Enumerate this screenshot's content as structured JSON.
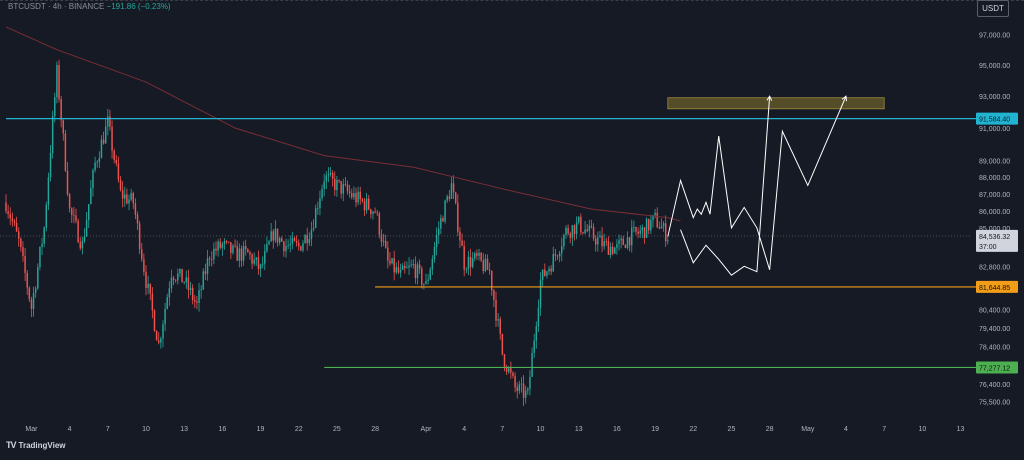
{
  "header": {
    "symbol": "BTCUSDT · 4h · BINANCE",
    "change": "−191.86 (−0.23%)"
  },
  "currency": "USDT",
  "brand": {
    "logo": "TV",
    "name": "TradingView"
  },
  "colors": {
    "background": "#161a25",
    "up": "#26a69a",
    "down": "#ef5350",
    "ma": "#7a2e35",
    "resistance_line": "#22b3d0",
    "support_line": "#f29d18",
    "low_line": "#4caf50",
    "zone": "#6b5d2a",
    "projection": "#ffffff"
  },
  "chart_data": {
    "type": "candlestick",
    "x_axis": {
      "tick_labels": [
        "Mar",
        "4",
        "7",
        "10",
        "13",
        "16",
        "19",
        "22",
        "25",
        "28",
        "Apr",
        "4",
        "7",
        "10",
        "13",
        "16",
        "19",
        "22",
        "25",
        "28",
        "May",
        "4",
        "7",
        "10",
        "13"
      ],
      "range": [
        "2025-02-27",
        "2025-05-15"
      ]
    },
    "y_axis": {
      "tick_labels": [
        "97,000.00",
        "95,000.00",
        "93,000.00",
        "91,000.00",
        "89,000.00",
        "88,000.00",
        "87,000.00",
        "86,000.00",
        "85,000.00",
        "82,800.00",
        "80,400.00",
        "79,400.00",
        "78,400.00",
        "76,400.00",
        "75,500.00"
      ],
      "range": [
        74300,
        98500
      ],
      "scale": "log"
    },
    "price_path": [
      [
        "2025-02-27",
        86500
      ],
      [
        "2025-02-28",
        84200
      ],
      [
        "2025-03-01",
        80500
      ],
      [
        "2025-03-02",
        85000
      ],
      [
        "2025-03-03",
        94500
      ],
      [
        "2025-03-04",
        86000
      ],
      [
        "2025-03-05",
        84000
      ],
      [
        "2025-03-06",
        88800
      ],
      [
        "2025-03-07",
        91300
      ],
      [
        "2025-03-08",
        87000
      ],
      [
        "2025-03-09",
        86500
      ],
      [
        "2025-03-10",
        82000
      ],
      [
        "2025-03-11",
        78500
      ],
      [
        "2025-03-12",
        82500
      ],
      [
        "2025-03-13",
        82000
      ],
      [
        "2025-03-14",
        80600
      ],
      [
        "2025-03-15",
        83500
      ],
      [
        "2025-03-16",
        84000
      ],
      [
        "2025-03-17",
        83500
      ],
      [
        "2025-03-18",
        83500
      ],
      [
        "2025-03-19",
        82600
      ],
      [
        "2025-03-20",
        84700
      ],
      [
        "2025-03-21",
        84000
      ],
      [
        "2025-03-22",
        83900
      ],
      [
        "2025-03-23",
        85000
      ],
      [
        "2025-03-24",
        88000
      ],
      [
        "2025-03-25",
        87500
      ],
      [
        "2025-03-26",
        87000
      ],
      [
        "2025-03-27",
        86500
      ],
      [
        "2025-03-28",
        86000
      ],
      [
        "2025-03-29",
        83000
      ],
      [
        "2025-03-30",
        82300
      ],
      [
        "2025-03-31",
        82800
      ],
      [
        "2025-04-01",
        81700
      ],
      [
        "2025-04-02",
        85000
      ],
      [
        "2025-04-03",
        87500
      ],
      [
        "2025-04-04",
        83000
      ],
      [
        "2025-04-05",
        83200
      ],
      [
        "2025-04-06",
        82500
      ],
      [
        "2025-04-07",
        78000
      ],
      [
        "2025-04-08",
        76200
      ],
      [
        "2025-04-09",
        75800
      ],
      [
        "2025-04-10",
        82000
      ],
      [
        "2025-04-11",
        83200
      ],
      [
        "2025-04-12",
        84800
      ],
      [
        "2025-04-13",
        85200
      ],
      [
        "2025-04-14",
        84600
      ],
      [
        "2025-04-15",
        84000
      ],
      [
        "2025-04-16",
        83800
      ],
      [
        "2025-04-17",
        84500
      ],
      [
        "2025-04-18",
        84800
      ],
      [
        "2025-04-19",
        85500
      ],
      [
        "2025-04-20",
        84536
      ]
    ],
    "moving_average": [
      [
        "2025-02-27",
        97500
      ],
      [
        "2025-03-03",
        96000
      ],
      [
        "2025-03-10",
        93900
      ],
      [
        "2025-03-17",
        91000
      ],
      [
        "2025-03-24",
        89300
      ],
      [
        "2025-03-31",
        88600
      ],
      [
        "2025-04-07",
        87300
      ],
      [
        "2025-04-14",
        86100
      ],
      [
        "2025-04-20",
        85600
      ],
      [
        "2025-04-21",
        85400
      ]
    ],
    "horizontal_levels": [
      {
        "label": "91,584.40",
        "value": 91584.4,
        "start": "2025-02-27",
        "color": "#22b3d0"
      },
      {
        "label": "81,644.85",
        "value": 81644.85,
        "start": "2025-03-28",
        "color": "#f29d18"
      },
      {
        "label": "77,277.12",
        "value": 77277.12,
        "start": "2025-03-24",
        "color": "#4caf50"
      }
    ],
    "zone": {
      "from": "2025-04-20",
      "to": "2025-05-07",
      "low": 92200,
      "high": 92900
    },
    "last_price": {
      "value": 84536.32,
      "label": "84,536.32",
      "countdown": "37:00"
    },
    "projections": [
      {
        "points": [
          [
            "2025-04-21",
            84900
          ],
          [
            "2025-04-22",
            83000
          ],
          [
            "2025-04-23",
            84000
          ],
          [
            "2025-04-24",
            83200
          ],
          [
            "2025-04-25",
            82300
          ],
          [
            "2025-04-26",
            82800
          ],
          [
            "2025-04-27",
            82500
          ],
          [
            "2025-04-28",
            93000
          ]
        ]
      },
      {
        "points": [
          [
            "2025-04-20",
            84500
          ],
          [
            "2025-04-21",
            87800
          ],
          [
            "2025-04-22",
            85600
          ],
          [
            "2025-04-22",
            86100
          ],
          [
            "2025-04-22",
            85800
          ],
          [
            "2025-04-23",
            86500
          ],
          [
            "2025-04-23",
            85800
          ],
          [
            "2025-04-24",
            90500
          ],
          [
            "2025-04-25",
            85000
          ],
          [
            "2025-04-26",
            86200
          ],
          [
            "2025-04-27",
            85000
          ],
          [
            "2025-04-28",
            82600
          ],
          [
            "2025-04-29",
            90800
          ],
          [
            "2025-05-01",
            87500
          ],
          [
            "2025-05-04",
            93000
          ]
        ]
      }
    ]
  }
}
